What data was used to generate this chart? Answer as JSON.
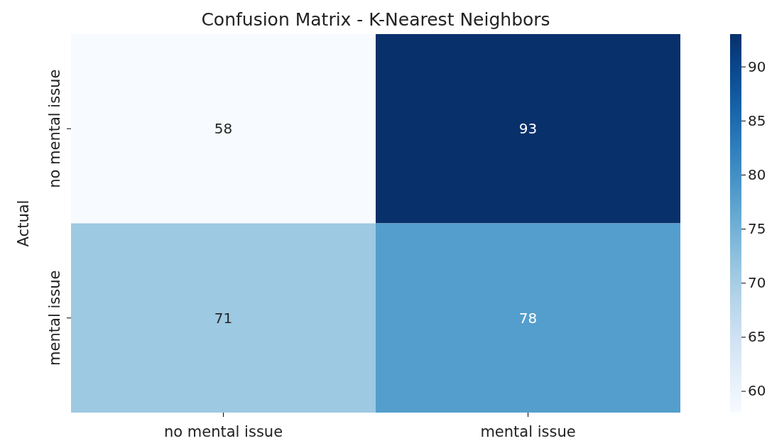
{
  "chart_data": {
    "type": "heatmap",
    "title": "Confusion Matrix - K-Nearest Neighbors",
    "ylabel": "Actual",
    "categories": [
      "no mental issue",
      "mental issue"
    ],
    "y_categories": [
      "no mental issue",
      "mental issue"
    ],
    "cells": [
      [
        58,
        93
      ],
      [
        71,
        78
      ]
    ],
    "clim": [
      58,
      93
    ],
    "data_labels": true,
    "cticks": [
      60,
      65,
      70,
      75,
      80,
      85,
      90
    ]
  }
}
